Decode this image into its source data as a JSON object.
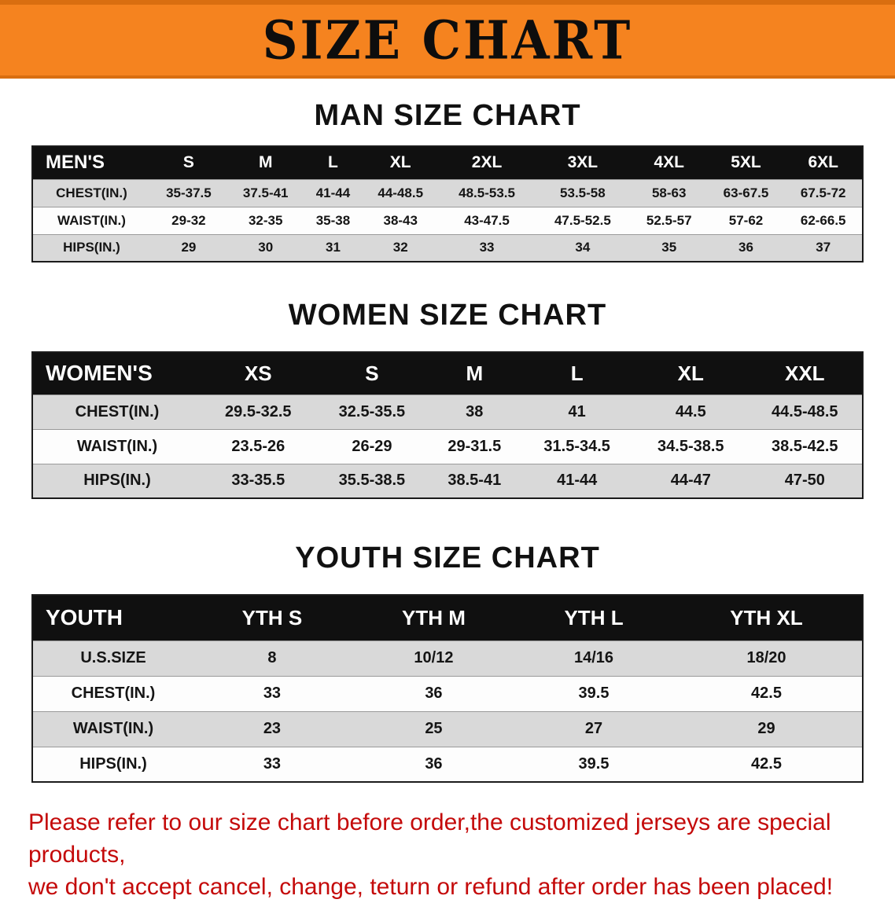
{
  "banner": {
    "title": "SIZE CHART"
  },
  "sections": [
    {
      "heading": "MAN SIZE CHART",
      "table": {
        "header": [
          "MEN'S",
          "S",
          "M",
          "L",
          "XL",
          "2XL",
          "3XL",
          "4XL",
          "5XL",
          "6XL"
        ],
        "rows": [
          [
            "CHEST(IN.)",
            "35-37.5",
            "37.5-41",
            "41-44",
            "44-48.5",
            "48.5-53.5",
            "53.5-58",
            "58-63",
            "63-67.5",
            "67.5-72"
          ],
          [
            "WAIST(IN.)",
            "29-32",
            "32-35",
            "35-38",
            "38-43",
            "43-47.5",
            "47.5-52.5",
            "52.5-57",
            "57-62",
            "62-66.5"
          ],
          [
            "HIPS(IN.)",
            "29",
            "30",
            "31",
            "32",
            "33",
            "34",
            "35",
            "36",
            "37"
          ]
        ]
      }
    },
    {
      "heading": "WOMEN SIZE CHART",
      "table": {
        "header": [
          "WOMEN'S",
          "XS",
          "S",
          "M",
          "L",
          "XL",
          "XXL"
        ],
        "rows": [
          [
            "CHEST(IN.)",
            "29.5-32.5",
            "32.5-35.5",
            "38",
            "41",
            "44.5",
            "44.5-48.5"
          ],
          [
            "WAIST(IN.)",
            "23.5-26",
            "26-29",
            "29-31.5",
            "31.5-34.5",
            "34.5-38.5",
            "38.5-42.5"
          ],
          [
            "HIPS(IN.)",
            "33-35.5",
            "35.5-38.5",
            "38.5-41",
            "41-44",
            "44-47",
            "47-50"
          ]
        ]
      }
    },
    {
      "heading": "YOUTH SIZE CHART",
      "table": {
        "header": [
          "YOUTH",
          "YTH S",
          "YTH M",
          "YTH L",
          "YTH XL"
        ],
        "rows": [
          [
            "U.S.SIZE",
            "8",
            "10/12",
            "14/16",
            "18/20"
          ],
          [
            "CHEST(IN.)",
            "33",
            "36",
            "39.5",
            "42.5"
          ],
          [
            "WAIST(IN.)",
            "23",
            "25",
            "27",
            "29"
          ],
          [
            "HIPS(IN.)",
            "33",
            "36",
            "39.5",
            "42.5"
          ]
        ]
      }
    }
  ],
  "disclaimer": {
    "lines": [
      "Please refer to our size chart before order,the customized jerseys are special products,",
      "we don't accept cancel, change, teturn or refund after order has been placed!"
    ]
  },
  "colors": {
    "banner_bg": "#F5831F",
    "header_bg": "#101010",
    "stripe": "#D9D9D9",
    "disclaimer_text": "#C40A0A"
  }
}
